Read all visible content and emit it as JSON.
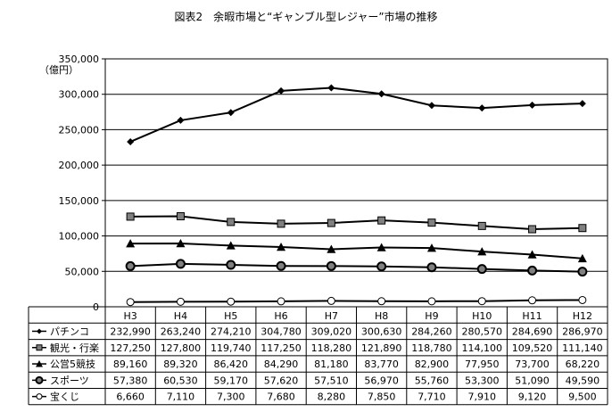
{
  "chart_data": {
    "type": "line",
    "title": "図表2　余暇市場と“ギャンブル型レジャー”市場の推移",
    "ylabel": "（億円）",
    "ylim": [
      0,
      350000
    ],
    "yticks": [
      0,
      50000,
      100000,
      150000,
      200000,
      250000,
      300000,
      350000
    ],
    "ytick_labels": [
      "0",
      "50,000",
      "100,000",
      "150,000",
      "200,000",
      "250,000",
      "300,000",
      "350,000"
    ],
    "categories": [
      "H3",
      "H4",
      "H5",
      "H6",
      "H7",
      "H8",
      "H9",
      "H10",
      "H11",
      "H12"
    ],
    "grid": true,
    "legend": "table-below",
    "series": [
      {
        "name": "パチンコ",
        "marker": "diamond",
        "values": [
          232990,
          263240,
          274210,
          304780,
          309020,
          300630,
          284260,
          280570,
          284690,
          286970
        ],
        "labels": [
          "232,990",
          "263,240",
          "274,210",
          "304,780",
          "309,020",
          "300,630",
          "284,260",
          "280,570",
          "284,690",
          "286,970"
        ]
      },
      {
        "name": "観光・行楽",
        "marker": "square",
        "values": [
          127250,
          127800,
          119740,
          117250,
          118280,
          121890,
          118780,
          114100,
          109520,
          111140
        ],
        "labels": [
          "127,250",
          "127,800",
          "119,740",
          "117,250",
          "118,280",
          "121,890",
          "118,780",
          "114,100",
          "109,520",
          "111,140"
        ]
      },
      {
        "name": "公営5競技",
        "marker": "triangle",
        "values": [
          89160,
          89320,
          86420,
          84290,
          81180,
          83770,
          82900,
          77950,
          73700,
          68220
        ],
        "labels": [
          "89,160",
          "89,320",
          "86,420",
          "84,290",
          "81,180",
          "83,770",
          "82,900",
          "77,950",
          "73,700",
          "68,220"
        ]
      },
      {
        "name": "スポーツ",
        "marker": "circle-filled",
        "values": [
          57380,
          60530,
          59170,
          57620,
          57510,
          56970,
          55760,
          53300,
          51090,
          49590
        ],
        "labels": [
          "57,380",
          "60,530",
          "59,170",
          "57,620",
          "57,510",
          "56,970",
          "55,760",
          "53,300",
          "51,090",
          "49,590"
        ]
      },
      {
        "name": "宝くじ",
        "marker": "circle-open",
        "values": [
          6660,
          7110,
          7300,
          7680,
          8280,
          7850,
          7710,
          7910,
          9120,
          9500
        ],
        "labels": [
          "6,660",
          "7,110",
          "7,300",
          "7,680",
          "8,280",
          "7,850",
          "7,710",
          "7,910",
          "9,120",
          "9,500"
        ]
      }
    ]
  }
}
